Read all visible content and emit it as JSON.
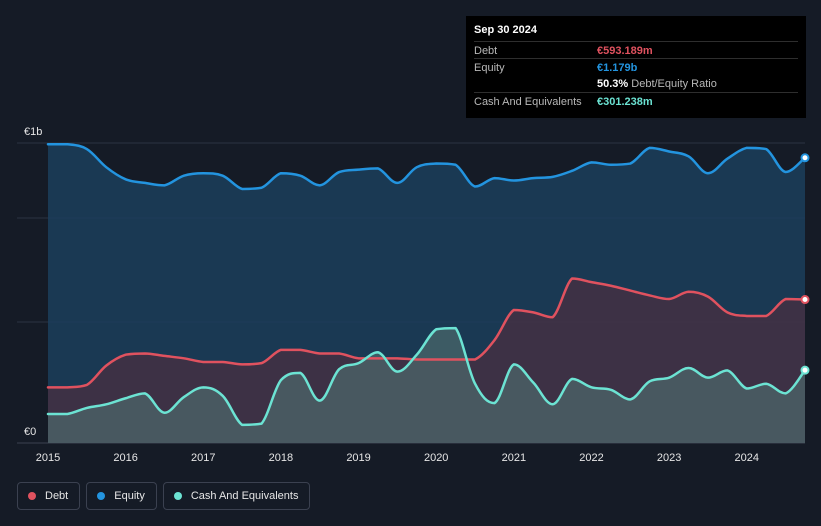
{
  "tooltip": {
    "date": "Sep 30 2024",
    "debt_label": "Debt",
    "debt_value": "€593.189m",
    "equity_label": "Equity",
    "equity_value": "€1.179b",
    "ratio_value": "50.3%",
    "ratio_label": "Debt/Equity Ratio",
    "cash_label": "Cash And Equivalents",
    "cash_value": "€301.238m"
  },
  "legend": {
    "debt": "Debt",
    "equity": "Equity",
    "cash": "Cash And Equivalents"
  },
  "colors": {
    "debt": "#e0525f",
    "equity": "#2394df",
    "cash": "#6ce3d3",
    "background": "#151b26"
  },
  "chart_data": {
    "type": "area",
    "x_unit": "year",
    "y_unit": "EUR millions",
    "ylim": [
      0,
      1240
    ],
    "y_tick_labels": [
      {
        "value": 1240,
        "label": "€1b"
      },
      {
        "value": 0,
        "label": "€0"
      }
    ],
    "x_ticks": [
      2015,
      2016,
      2017,
      2018,
      2019,
      2020,
      2021,
      2022,
      2023,
      2024
    ],
    "xlim": [
      2015.0,
      2024.75
    ],
    "gridlines_at": [
      1240,
      930,
      500
    ],
    "series": [
      {
        "name": "Equity",
        "x": [
          2015.0,
          2015.25,
          2015.5,
          2015.75,
          2016.0,
          2016.25,
          2016.5,
          2016.75,
          2017.0,
          2017.25,
          2017.5,
          2017.75,
          2018.0,
          2018.25,
          2018.5,
          2018.75,
          2019.0,
          2019.25,
          2019.5,
          2019.75,
          2020.0,
          2020.25,
          2020.5,
          2020.75,
          2021.0,
          2021.25,
          2021.5,
          2021.75,
          2022.0,
          2022.25,
          2022.5,
          2022.75,
          2023.0,
          2023.25,
          2023.5,
          2023.75,
          2024.0,
          2024.25,
          2024.5,
          2024.75
        ],
        "values": [
          1235,
          1235,
          1215,
          1140,
          1090,
          1075,
          1065,
          1105,
          1115,
          1105,
          1050,
          1055,
          1115,
          1105,
          1065,
          1120,
          1130,
          1135,
          1075,
          1140,
          1155,
          1150,
          1060,
          1095,
          1085,
          1095,
          1100,
          1125,
          1160,
          1150,
          1155,
          1220,
          1205,
          1185,
          1115,
          1175,
          1220,
          1215,
          1120,
          1179
        ]
      },
      {
        "name": "Debt",
        "x": [
          2015.0,
          2015.25,
          2015.5,
          2015.75,
          2016.0,
          2016.25,
          2016.5,
          2016.75,
          2017.0,
          2017.25,
          2017.5,
          2017.75,
          2018.0,
          2018.25,
          2018.5,
          2018.75,
          2019.0,
          2019.25,
          2019.5,
          2019.75,
          2020.0,
          2020.25,
          2020.5,
          2020.75,
          2021.0,
          2021.25,
          2021.5,
          2021.75,
          2022.0,
          2022.25,
          2022.5,
          2022.75,
          2023.0,
          2023.25,
          2023.5,
          2023.75,
          2024.0,
          2024.25,
          2024.5,
          2024.75
        ],
        "values": [
          230,
          230,
          240,
          320,
          365,
          370,
          360,
          350,
          335,
          335,
          325,
          330,
          385,
          385,
          370,
          370,
          350,
          350,
          350,
          345,
          345,
          345,
          345,
          425,
          550,
          540,
          520,
          680,
          665,
          650,
          630,
          610,
          595,
          625,
          605,
          540,
          525,
          525,
          595,
          593
        ]
      },
      {
        "name": "Cash And Equivalents",
        "x": [
          2015.0,
          2015.25,
          2015.5,
          2015.75,
          2016.0,
          2016.25,
          2016.5,
          2016.75,
          2017.0,
          2017.25,
          2017.5,
          2017.75,
          2018.0,
          2018.25,
          2018.5,
          2018.75,
          2019.0,
          2019.25,
          2019.5,
          2019.75,
          2020.0,
          2020.25,
          2020.5,
          2020.75,
          2021.0,
          2021.25,
          2021.5,
          2021.75,
          2022.0,
          2022.25,
          2022.5,
          2022.75,
          2023.0,
          2023.25,
          2023.5,
          2023.75,
          2024.0,
          2024.25,
          2024.5,
          2024.75
        ],
        "values": [
          120,
          120,
          145,
          160,
          185,
          205,
          125,
          190,
          230,
          195,
          75,
          80,
          260,
          290,
          175,
          305,
          330,
          375,
          295,
          365,
          470,
          475,
          245,
          165,
          325,
          250,
          160,
          265,
          230,
          220,
          180,
          255,
          270,
          310,
          270,
          300,
          225,
          245,
          205,
          301
        ]
      }
    ]
  }
}
